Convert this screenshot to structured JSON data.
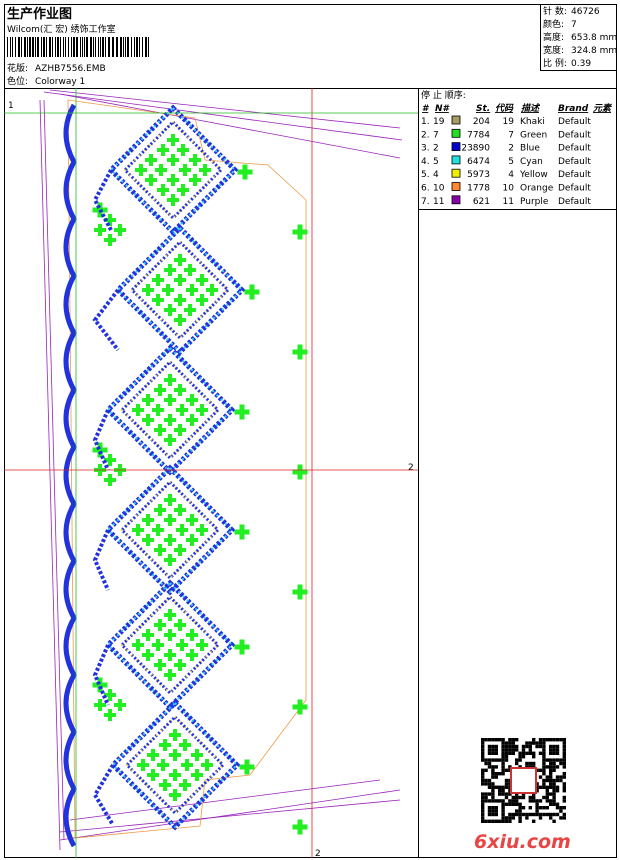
{
  "header": {
    "title": "生产作业图",
    "studio": "Wilcom(汇 宏) 绣饰工作室",
    "design_label": "花版:",
    "design": "AZHB7556.EMB",
    "colorway_label": "色位:",
    "colorway": "Colorway 1"
  },
  "stats": [
    {
      "label": "针 数:",
      "value": "46726"
    },
    {
      "label": "颜色:",
      "value": "7"
    },
    {
      "label": "高度:",
      "value": "653.8 mm"
    },
    {
      "label": "宽度:",
      "value": "324.8 mm"
    },
    {
      "label": "比 例:",
      "value": "0.39"
    }
  ],
  "stop_sequence": {
    "title": "停 止 顺序:",
    "columns": [
      "#",
      "N#",
      "St.",
      "代码",
      "描述",
      "Brand",
      "元素"
    ],
    "rows": [
      {
        "index": "1.",
        "n": 19,
        "color": "#a89a66",
        "stitches": 204,
        "code": 19,
        "description": "Khaki",
        "brand": "Default"
      },
      {
        "index": "2.",
        "n": 7,
        "color": "#22dd22",
        "stitches": 7784,
        "code": 7,
        "description": "Green",
        "brand": "Default"
      },
      {
        "index": "3.",
        "n": 2,
        "color": "#0000cc",
        "stitches": 23890,
        "code": 2,
        "description": "Blue",
        "brand": "Default"
      },
      {
        "index": "4.",
        "n": 5,
        "color": "#22e0e0",
        "stitches": 6474,
        "code": 5,
        "description": "Cyan",
        "brand": "Default"
      },
      {
        "index": "5.",
        "n": 4,
        "color": "#eeee00",
        "stitches": 5973,
        "code": 4,
        "description": "Yellow",
        "brand": "Default"
      },
      {
        "index": "6.",
        "n": 10,
        "color": "#ff8833",
        "stitches": 1778,
        "code": 10,
        "description": "Orange",
        "brand": "Default"
      },
      {
        "index": "7.",
        "n": 11,
        "color": "#8800aa",
        "stitches": 621,
        "code": 11,
        "description": "Purple",
        "brand": "Default"
      }
    ]
  },
  "markers": [
    "1",
    "2",
    "2"
  ],
  "watermark": "6xiu.com"
}
